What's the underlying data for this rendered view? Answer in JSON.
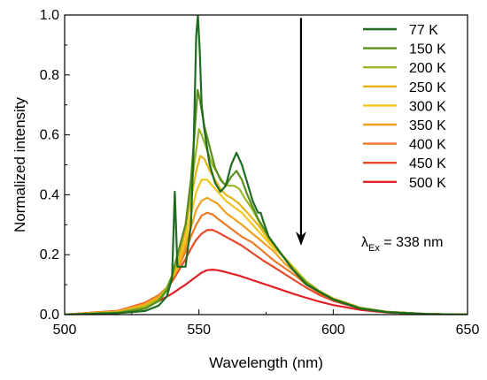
{
  "chart_data": {
    "type": "line",
    "xlabel": "Wavelength (nm)",
    "ylabel": "Normalized intensity",
    "xlim": [
      500,
      650
    ],
    "ylim": [
      0,
      1.0
    ],
    "x_ticks": [
      "500",
      "550",
      "600",
      "650"
    ],
    "y_ticks": [
      "0.0",
      "0.2",
      "0.4",
      "0.6",
      "0.8",
      "1.0"
    ],
    "legend_position": "top-right",
    "annotation": {
      "prefix": "λ",
      "subscript": "Ex",
      "suffix": " = 338 nm"
    },
    "arrow": {
      "x": 588,
      "y_from": 0.99,
      "y_to": 0.23,
      "meaning": "increasing temperature"
    },
    "series": [
      {
        "name": "77 K",
        "color": "#1f6b1f",
        "points": [
          [
            500,
            0
          ],
          [
            520,
            0.005
          ],
          [
            530,
            0.012
          ],
          [
            535,
            0.03
          ],
          [
            538,
            0.06
          ],
          [
            540,
            0.12
          ],
          [
            541,
            0.41
          ],
          [
            542,
            0.16
          ],
          [
            545,
            0.16
          ],
          [
            547,
            0.3
          ],
          [
            548,
            0.55
          ],
          [
            549,
            0.93
          ],
          [
            549.6,
            1.0
          ],
          [
            550.3,
            0.88
          ],
          [
            551,
            0.7
          ],
          [
            552,
            0.62
          ],
          [
            554,
            0.5
          ],
          [
            556,
            0.44
          ],
          [
            558,
            0.41
          ],
          [
            560,
            0.43
          ],
          [
            562,
            0.5
          ],
          [
            564,
            0.54
          ],
          [
            566,
            0.5
          ],
          [
            568,
            0.44
          ],
          [
            570,
            0.38
          ],
          [
            572,
            0.34
          ],
          [
            573,
            0.34
          ],
          [
            574,
            0.31
          ],
          [
            576,
            0.26
          ],
          [
            580,
            0.21
          ],
          [
            585,
            0.15
          ],
          [
            590,
            0.1
          ],
          [
            595,
            0.075
          ],
          [
            600,
            0.05
          ],
          [
            610,
            0.02
          ],
          [
            620,
            0.008
          ],
          [
            635,
            0.002
          ],
          [
            650,
            0
          ]
        ]
      },
      {
        "name": "150 K",
        "color": "#5a8f1e",
        "points": [
          [
            500,
            0
          ],
          [
            520,
            0.006
          ],
          [
            530,
            0.02
          ],
          [
            535,
            0.045
          ],
          [
            538,
            0.08
          ],
          [
            540,
            0.13
          ],
          [
            542,
            0.2
          ],
          [
            545,
            0.3
          ],
          [
            547,
            0.45
          ],
          [
            548.5,
            0.62
          ],
          [
            549.5,
            0.75
          ],
          [
            550.5,
            0.71
          ],
          [
            552,
            0.63
          ],
          [
            554,
            0.56
          ],
          [
            556,
            0.49
          ],
          [
            558,
            0.45
          ],
          [
            560,
            0.43
          ],
          [
            562,
            0.46
          ],
          [
            564,
            0.48
          ],
          [
            566,
            0.45
          ],
          [
            568,
            0.4
          ],
          [
            570,
            0.36
          ],
          [
            572,
            0.32
          ],
          [
            574,
            0.29
          ],
          [
            576,
            0.26
          ],
          [
            580,
            0.21
          ],
          [
            585,
            0.15
          ],
          [
            590,
            0.105
          ],
          [
            595,
            0.075
          ],
          [
            600,
            0.052
          ],
          [
            610,
            0.022
          ],
          [
            620,
            0.009
          ],
          [
            635,
            0.002
          ],
          [
            650,
            0
          ]
        ]
      },
      {
        "name": "200 K",
        "color": "#9ab823",
        "points": [
          [
            500,
            0
          ],
          [
            520,
            0.008
          ],
          [
            530,
            0.025
          ],
          [
            535,
            0.05
          ],
          [
            538,
            0.09
          ],
          [
            540,
            0.13
          ],
          [
            542,
            0.19
          ],
          [
            545,
            0.3
          ],
          [
            547,
            0.42
          ],
          [
            549,
            0.55
          ],
          [
            550,
            0.62
          ],
          [
            551,
            0.6
          ],
          [
            553,
            0.55
          ],
          [
            555,
            0.5
          ],
          [
            557,
            0.47
          ],
          [
            559,
            0.44
          ],
          [
            561,
            0.43
          ],
          [
            563,
            0.43
          ],
          [
            565,
            0.42
          ],
          [
            567,
            0.39
          ],
          [
            570,
            0.35
          ],
          [
            573,
            0.3
          ],
          [
            576,
            0.26
          ],
          [
            580,
            0.21
          ],
          [
            585,
            0.155
          ],
          [
            590,
            0.11
          ],
          [
            595,
            0.078
          ],
          [
            600,
            0.053
          ],
          [
            610,
            0.022
          ],
          [
            620,
            0.009
          ],
          [
            635,
            0.002
          ],
          [
            650,
            0
          ]
        ]
      },
      {
        "name": "250 K",
        "color": "#e7b415",
        "points": [
          [
            500,
            0
          ],
          [
            520,
            0.009
          ],
          [
            530,
            0.028
          ],
          [
            535,
            0.055
          ],
          [
            538,
            0.09
          ],
          [
            540,
            0.12
          ],
          [
            542,
            0.17
          ],
          [
            545,
            0.28
          ],
          [
            547,
            0.38
          ],
          [
            549,
            0.48
          ],
          [
            550.5,
            0.53
          ],
          [
            552,
            0.52
          ],
          [
            554,
            0.48
          ],
          [
            556,
            0.45
          ],
          [
            558,
            0.42
          ],
          [
            560,
            0.4
          ],
          [
            562,
            0.39
          ],
          [
            565,
            0.37
          ],
          [
            568,
            0.34
          ],
          [
            572,
            0.3
          ],
          [
            576,
            0.25
          ],
          [
            580,
            0.21
          ],
          [
            585,
            0.155
          ],
          [
            590,
            0.11
          ],
          [
            595,
            0.078
          ],
          [
            600,
            0.054
          ],
          [
            610,
            0.023
          ],
          [
            620,
            0.009
          ],
          [
            635,
            0.002
          ],
          [
            650,
            0
          ]
        ]
      },
      {
        "name": "300 K",
        "color": "#f3c61a",
        "points": [
          [
            500,
            0
          ],
          [
            520,
            0.01
          ],
          [
            530,
            0.03
          ],
          [
            535,
            0.055
          ],
          [
            538,
            0.09
          ],
          [
            540,
            0.12
          ],
          [
            542,
            0.16
          ],
          [
            545,
            0.25
          ],
          [
            547,
            0.33
          ],
          [
            549,
            0.41
          ],
          [
            551,
            0.45
          ],
          [
            553,
            0.45
          ],
          [
            555,
            0.43
          ],
          [
            557,
            0.41
          ],
          [
            560,
            0.38
          ],
          [
            563,
            0.36
          ],
          [
            566,
            0.34
          ],
          [
            570,
            0.3
          ],
          [
            574,
            0.26
          ],
          [
            578,
            0.22
          ],
          [
            582,
            0.19
          ],
          [
            586,
            0.15
          ],
          [
            590,
            0.11
          ],
          [
            595,
            0.078
          ],
          [
            600,
            0.054
          ],
          [
            610,
            0.023
          ],
          [
            620,
            0.009
          ],
          [
            635,
            0.002
          ],
          [
            650,
            0
          ]
        ]
      },
      {
        "name": "350 K",
        "color": "#f0a01f",
        "points": [
          [
            500,
            0
          ],
          [
            520,
            0.01
          ],
          [
            530,
            0.035
          ],
          [
            535,
            0.06
          ],
          [
            538,
            0.09
          ],
          [
            540,
            0.12
          ],
          [
            542,
            0.15
          ],
          [
            545,
            0.23
          ],
          [
            547,
            0.29
          ],
          [
            549,
            0.35
          ],
          [
            551,
            0.38
          ],
          [
            553,
            0.39
          ],
          [
            555,
            0.38
          ],
          [
            557,
            0.37
          ],
          [
            560,
            0.34
          ],
          [
            563,
            0.32
          ],
          [
            566,
            0.3
          ],
          [
            570,
            0.27
          ],
          [
            574,
            0.24
          ],
          [
            578,
            0.21
          ],
          [
            582,
            0.17
          ],
          [
            586,
            0.14
          ],
          [
            590,
            0.11
          ],
          [
            595,
            0.077
          ],
          [
            600,
            0.053
          ],
          [
            610,
            0.023
          ],
          [
            620,
            0.009
          ],
          [
            635,
            0.002
          ],
          [
            650,
            0
          ]
        ]
      },
      {
        "name": "400 K",
        "color": "#ec7a26",
        "points": [
          [
            500,
            0
          ],
          [
            520,
            0.012
          ],
          [
            530,
            0.038
          ],
          [
            535,
            0.065
          ],
          [
            538,
            0.09
          ],
          [
            540,
            0.12
          ],
          [
            542,
            0.15
          ],
          [
            545,
            0.21
          ],
          [
            547,
            0.26
          ],
          [
            549,
            0.3
          ],
          [
            551,
            0.33
          ],
          [
            553,
            0.34
          ],
          [
            555,
            0.335
          ],
          [
            557,
            0.32
          ],
          [
            560,
            0.3
          ],
          [
            563,
            0.28
          ],
          [
            566,
            0.26
          ],
          [
            570,
            0.24
          ],
          [
            574,
            0.21
          ],
          [
            578,
            0.18
          ],
          [
            582,
            0.155
          ],
          [
            586,
            0.13
          ],
          [
            590,
            0.1
          ],
          [
            595,
            0.072
          ],
          [
            600,
            0.05
          ],
          [
            610,
            0.022
          ],
          [
            620,
            0.009
          ],
          [
            635,
            0.002
          ],
          [
            650,
            0
          ]
        ]
      },
      {
        "name": "450 K",
        "color": "#e8482a",
        "points": [
          [
            500,
            0
          ],
          [
            520,
            0.013
          ],
          [
            530,
            0.04
          ],
          [
            535,
            0.065
          ],
          [
            538,
            0.09
          ],
          [
            540,
            0.11
          ],
          [
            542,
            0.14
          ],
          [
            545,
            0.185
          ],
          [
            547,
            0.22
          ],
          [
            549,
            0.25
          ],
          [
            551,
            0.27
          ],
          [
            553,
            0.282
          ],
          [
            555,
            0.283
          ],
          [
            557,
            0.275
          ],
          [
            560,
            0.26
          ],
          [
            563,
            0.245
          ],
          [
            566,
            0.23
          ],
          [
            570,
            0.205
          ],
          [
            574,
            0.18
          ],
          [
            578,
            0.158
          ],
          [
            582,
            0.135
          ],
          [
            586,
            0.112
          ],
          [
            590,
            0.09
          ],
          [
            595,
            0.065
          ],
          [
            600,
            0.046
          ],
          [
            610,
            0.021
          ],
          [
            620,
            0.009
          ],
          [
            635,
            0.002
          ],
          [
            650,
            0
          ]
        ]
      },
      {
        "name": "500 K",
        "color": "#e21f26",
        "points": [
          [
            500,
            0
          ],
          [
            520,
            0.012
          ],
          [
            530,
            0.03
          ],
          [
            535,
            0.045
          ],
          [
            540,
            0.07
          ],
          [
            545,
            0.1
          ],
          [
            548,
            0.12
          ],
          [
            551,
            0.14
          ],
          [
            553,
            0.148
          ],
          [
            555,
            0.15
          ],
          [
            557,
            0.148
          ],
          [
            560,
            0.142
          ],
          [
            565,
            0.13
          ],
          [
            570,
            0.115
          ],
          [
            575,
            0.1
          ],
          [
            580,
            0.085
          ],
          [
            585,
            0.07
          ],
          [
            590,
            0.056
          ],
          [
            595,
            0.043
          ],
          [
            600,
            0.032
          ],
          [
            610,
            0.016
          ],
          [
            620,
            0.007
          ],
          [
            635,
            0.002
          ],
          [
            650,
            0
          ]
        ]
      }
    ]
  }
}
